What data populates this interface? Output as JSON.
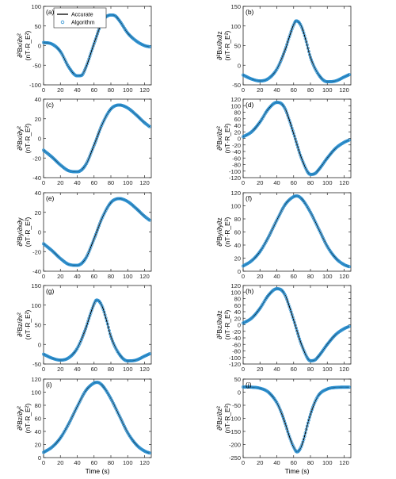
{
  "chart_data": [
    {
      "type": "line",
      "panel_label": "(a)",
      "ylabel_line1": "∂²Bx/∂x²",
      "ylabel_line2": "(nT·R_E²)",
      "ylim": [
        -100,
        100
      ],
      "yticks": [
        -100,
        -50,
        0,
        50,
        100
      ],
      "xlim": [
        0,
        128
      ],
      "xticks": [
        0,
        20,
        40,
        60,
        80,
        100,
        120
      ],
      "series": [
        {
          "name": "Accurate",
          "x": [
            0,
            10,
            20,
            30,
            40,
            45,
            50,
            60,
            70,
            80,
            85,
            90,
            100,
            110,
            120,
            126
          ],
          "y": [
            8,
            4,
            -15,
            -55,
            -77,
            -76,
            -57,
            5,
            62,
            78,
            76,
            64,
            32,
            12,
            0,
            -3
          ]
        },
        {
          "name": "Algorithm",
          "x": [
            0,
            10,
            20,
            30,
            40,
            45,
            50,
            60,
            70,
            80,
            85,
            90,
            100,
            110,
            120,
            126
          ],
          "y": [
            8,
            4,
            -15,
            -55,
            -77,
            -76,
            -57,
            5,
            62,
            78,
            76,
            64,
            32,
            12,
            0,
            -3
          ]
        }
      ]
    },
    {
      "type": "line",
      "panel_label": "(b)",
      "ylabel_line1": "∂²Bx/∂x∂z",
      "ylabel_line2": "(nT·R_E²)",
      "ylim": [
        -50,
        150
      ],
      "yticks": [
        -50,
        0,
        50,
        100,
        150
      ],
      "xlim": [
        0,
        128
      ],
      "xticks": [
        0,
        20,
        40,
        60,
        80,
        100,
        120
      ],
      "series": [
        {
          "name": "Accurate",
          "x": [
            0,
            10,
            20,
            30,
            40,
            50,
            55,
            60,
            63,
            66,
            70,
            75,
            80,
            90,
            100,
            110,
            120,
            126
          ],
          "y": [
            -25,
            -35,
            -40,
            -34,
            -10,
            40,
            73,
            103,
            113,
            110,
            95,
            60,
            20,
            -25,
            -42,
            -40,
            -30,
            -24
          ]
        },
        {
          "name": "Algorithm",
          "x": [
            0,
            10,
            20,
            30,
            40,
            50,
            55,
            60,
            63,
            66,
            70,
            75,
            80,
            90,
            100,
            110,
            120,
            126
          ],
          "y": [
            -25,
            -35,
            -40,
            -34,
            -10,
            40,
            73,
            103,
            113,
            110,
            95,
            60,
            20,
            -25,
            -42,
            -40,
            -30,
            -24
          ]
        }
      ]
    },
    {
      "type": "line",
      "panel_label": "(c)",
      "ylabel_line1": "∂²Bx/∂y²",
      "ylabel_line2": "(nT·R_E²)",
      "ylim": [
        -40,
        40
      ],
      "yticks": [
        -40,
        -20,
        0,
        20,
        40
      ],
      "xlim": [
        0,
        128
      ],
      "xticks": [
        0,
        20,
        40,
        60,
        80,
        100,
        120
      ],
      "series": [
        {
          "name": "Accurate",
          "x": [
            0,
            10,
            20,
            30,
            40,
            50,
            60,
            70,
            80,
            90,
            100,
            110,
            120,
            126
          ],
          "y": [
            -12,
            -19,
            -27,
            -33,
            -34,
            -27,
            -7,
            15,
            30,
            34,
            31,
            24,
            16,
            12
          ]
        },
        {
          "name": "Algorithm",
          "x": [
            0,
            10,
            20,
            30,
            40,
            50,
            60,
            70,
            80,
            90,
            100,
            110,
            120,
            126
          ],
          "y": [
            -12,
            -19,
            -27,
            -33,
            -34,
            -27,
            -7,
            15,
            30,
            34,
            31,
            24,
            16,
            12
          ]
        }
      ]
    },
    {
      "type": "line",
      "panel_label": "(d)",
      "ylabel_line1": "∂²Bx/∂z²",
      "ylabel_line2": "(nT·R_E²)",
      "ylim": [
        -120,
        120
      ],
      "yticks": [
        -120,
        -100,
        -80,
        -60,
        -40,
        -20,
        0,
        20,
        40,
        60,
        80,
        100,
        120
      ],
      "xlim": [
        0,
        128
      ],
      "xticks": [
        0,
        20,
        40,
        60,
        80,
        100,
        120
      ],
      "series": [
        {
          "name": "Accurate",
          "x": [
            0,
            10,
            20,
            30,
            40,
            45,
            50,
            55,
            60,
            70,
            80,
            85,
            90,
            100,
            110,
            120,
            126
          ],
          "y": [
            5,
            20,
            50,
            90,
            110,
            107,
            90,
            55,
            15,
            -65,
            -110,
            -108,
            -95,
            -60,
            -30,
            -12,
            -5
          ]
        },
        {
          "name": "Algorithm",
          "x": [
            0,
            10,
            20,
            30,
            40,
            45,
            50,
            55,
            60,
            70,
            80,
            85,
            90,
            100,
            110,
            120,
            126
          ],
          "y": [
            5,
            20,
            50,
            90,
            110,
            107,
            90,
            55,
            15,
            -65,
            -110,
            -108,
            -95,
            -60,
            -30,
            -12,
            -5
          ]
        }
      ]
    },
    {
      "type": "line",
      "panel_label": "(e)",
      "ylabel_line1": "∂²By/∂x∂y",
      "ylabel_line2": "(nT·R_E²)",
      "ylim": [
        -40,
        40
      ],
      "yticks": [
        -40,
        -20,
        0,
        20,
        40
      ],
      "xlim": [
        0,
        128
      ],
      "xticks": [
        0,
        20,
        40,
        60,
        80,
        100,
        120
      ],
      "series": [
        {
          "name": "Accurate",
          "x": [
            0,
            10,
            20,
            30,
            40,
            50,
            60,
            70,
            80,
            90,
            100,
            110,
            120,
            126
          ],
          "y": [
            -12,
            -19,
            -27,
            -33,
            -34,
            -27,
            -7,
            15,
            30,
            34,
            31,
            24,
            16,
            12
          ]
        },
        {
          "name": "Algorithm",
          "x": [
            0,
            10,
            20,
            30,
            40,
            50,
            60,
            70,
            80,
            90,
            100,
            110,
            120,
            126
          ],
          "y": [
            -12,
            -19,
            -27,
            -33,
            -34,
            -27,
            -7,
            15,
            30,
            34,
            31,
            24,
            16,
            12
          ]
        }
      ]
    },
    {
      "type": "line",
      "panel_label": "(f)",
      "ylabel_line1": "∂²By/∂y∂z",
      "ylabel_line2": "(nT·R_E²)",
      "ylim": [
        0,
        120
      ],
      "yticks": [
        0,
        20,
        40,
        60,
        80,
        100,
        120
      ],
      "xlim": [
        0,
        128
      ],
      "xticks": [
        0,
        20,
        40,
        60,
        80,
        100,
        120
      ],
      "series": [
        {
          "name": "Accurate",
          "x": [
            0,
            10,
            20,
            30,
            40,
            50,
            60,
            64,
            70,
            80,
            90,
            100,
            110,
            120,
            126
          ],
          "y": [
            8,
            16,
            30,
            52,
            78,
            102,
            114,
            115,
            110,
            90,
            64,
            38,
            20,
            10,
            7
          ]
        },
        {
          "name": "Algorithm",
          "x": [
            0,
            10,
            20,
            30,
            40,
            50,
            60,
            64,
            70,
            80,
            90,
            100,
            110,
            120,
            126
          ],
          "y": [
            8,
            16,
            30,
            52,
            78,
            102,
            114,
            115,
            110,
            90,
            64,
            38,
            20,
            10,
            7
          ]
        }
      ]
    },
    {
      "type": "line",
      "panel_label": "(g)",
      "ylabel_line1": "∂²Bz/∂x²",
      "ylabel_line2": "(nT·R_E²)",
      "ylim": [
        -50,
        150
      ],
      "yticks": [
        -50,
        0,
        50,
        100,
        150
      ],
      "xlim": [
        0,
        128
      ],
      "xticks": [
        0,
        20,
        40,
        60,
        80,
        100,
        120
      ],
      "series": [
        {
          "name": "Accurate",
          "x": [
            0,
            10,
            20,
            30,
            40,
            50,
            55,
            60,
            63,
            66,
            70,
            75,
            80,
            90,
            100,
            110,
            120,
            126
          ],
          "y": [
            -25,
            -35,
            -40,
            -34,
            -10,
            40,
            73,
            103,
            113,
            110,
            95,
            60,
            20,
            -25,
            -42,
            -40,
            -30,
            -24
          ]
        },
        {
          "name": "Algorithm",
          "x": [
            0,
            10,
            20,
            30,
            40,
            50,
            55,
            60,
            63,
            66,
            70,
            75,
            80,
            90,
            100,
            110,
            120,
            126
          ],
          "y": [
            -25,
            -35,
            -40,
            -34,
            -10,
            40,
            73,
            103,
            113,
            110,
            95,
            60,
            20,
            -25,
            -42,
            -40,
            -30,
            -24
          ]
        }
      ]
    },
    {
      "type": "line",
      "panel_label": "(h)",
      "ylabel_line1": "∂²Bz/∂x∂z",
      "ylabel_line2": "(nT·R_E²)",
      "ylim": [
        -120,
        120
      ],
      "yticks": [
        -120,
        -100,
        -80,
        -60,
        -40,
        -20,
        0,
        20,
        40,
        60,
        80,
        100,
        120
      ],
      "xlim": [
        0,
        128
      ],
      "xticks": [
        0,
        20,
        40,
        60,
        80,
        100,
        120
      ],
      "series": [
        {
          "name": "Accurate",
          "x": [
            0,
            10,
            20,
            30,
            40,
            45,
            50,
            55,
            60,
            70,
            80,
            85,
            90,
            100,
            110,
            120,
            126
          ],
          "y": [
            5,
            20,
            50,
            90,
            110,
            107,
            90,
            55,
            15,
            -65,
            -110,
            -108,
            -95,
            -60,
            -30,
            -12,
            -5
          ]
        },
        {
          "name": "Algorithm",
          "x": [
            0,
            10,
            20,
            30,
            40,
            45,
            50,
            55,
            60,
            70,
            80,
            85,
            90,
            100,
            110,
            120,
            126
          ],
          "y": [
            5,
            20,
            50,
            90,
            110,
            107,
            90,
            55,
            15,
            -65,
            -110,
            -108,
            -95,
            -60,
            -30,
            -12,
            -5
          ]
        }
      ]
    },
    {
      "type": "line",
      "panel_label": "(i)",
      "ylabel_line1": "∂²Bz/∂y²",
      "ylabel_line2": "(nT·R_E²)",
      "ylim": [
        0,
        120
      ],
      "yticks": [
        0,
        20,
        40,
        60,
        80,
        100,
        120
      ],
      "xlim": [
        0,
        128
      ],
      "xticks": [
        0,
        20,
        40,
        60,
        80,
        100,
        120
      ],
      "xlabel": "Time (s)",
      "series": [
        {
          "name": "Accurate",
          "x": [
            0,
            10,
            20,
            30,
            40,
            50,
            60,
            64,
            70,
            80,
            90,
            100,
            110,
            120,
            126
          ],
          "y": [
            8,
            16,
            30,
            52,
            78,
            102,
            114,
            115,
            110,
            90,
            64,
            38,
            20,
            10,
            7
          ]
        },
        {
          "name": "Algorithm",
          "x": [
            0,
            10,
            20,
            30,
            40,
            50,
            60,
            64,
            70,
            80,
            90,
            100,
            110,
            120,
            126
          ],
          "y": [
            8,
            16,
            30,
            52,
            78,
            102,
            114,
            115,
            110,
            90,
            64,
            38,
            20,
            10,
            7
          ]
        }
      ]
    },
    {
      "type": "line",
      "panel_label": "(j)",
      "ylabel_line1": "∂²Bz/∂z²",
      "ylabel_line2": "(nT·R_E²)",
      "ylim": [
        -250,
        50
      ],
      "yticks": [
        -250,
        -200,
        -150,
        -100,
        -50,
        0,
        50
      ],
      "xlim": [
        0,
        128
      ],
      "xticks": [
        0,
        20,
        40,
        60,
        80,
        100,
        120
      ],
      "xlabel": "Time (s)",
      "series": [
        {
          "name": "Accurate",
          "x": [
            0,
            10,
            20,
            30,
            40,
            45,
            50,
            55,
            60,
            64,
            68,
            72,
            76,
            80,
            85,
            90,
            100,
            110,
            120,
            126
          ],
          "y": [
            20,
            19,
            15,
            0,
            -40,
            -75,
            -120,
            -170,
            -210,
            -228,
            -215,
            -180,
            -130,
            -85,
            -40,
            -10,
            12,
            18,
            19,
            19
          ]
        },
        {
          "name": "Algorithm",
          "x": [
            0,
            10,
            20,
            30,
            40,
            45,
            50,
            55,
            60,
            64,
            68,
            72,
            76,
            80,
            85,
            90,
            100,
            110,
            120,
            126
          ],
          "y": [
            20,
            19,
            15,
            0,
            -40,
            -75,
            -120,
            -170,
            -210,
            -228,
            -215,
            -180,
            -130,
            -85,
            -40,
            -10,
            12,
            18,
            19,
            19
          ]
        }
      ]
    }
  ],
  "legend": {
    "line_label": "Accurate",
    "marker_label": "Algorithm",
    "placement": "top-left of panel (a)"
  },
  "colors": {
    "accurate_line": "#000000",
    "algorithm_marker": "#2a8fd0",
    "axes": "#262626"
  }
}
